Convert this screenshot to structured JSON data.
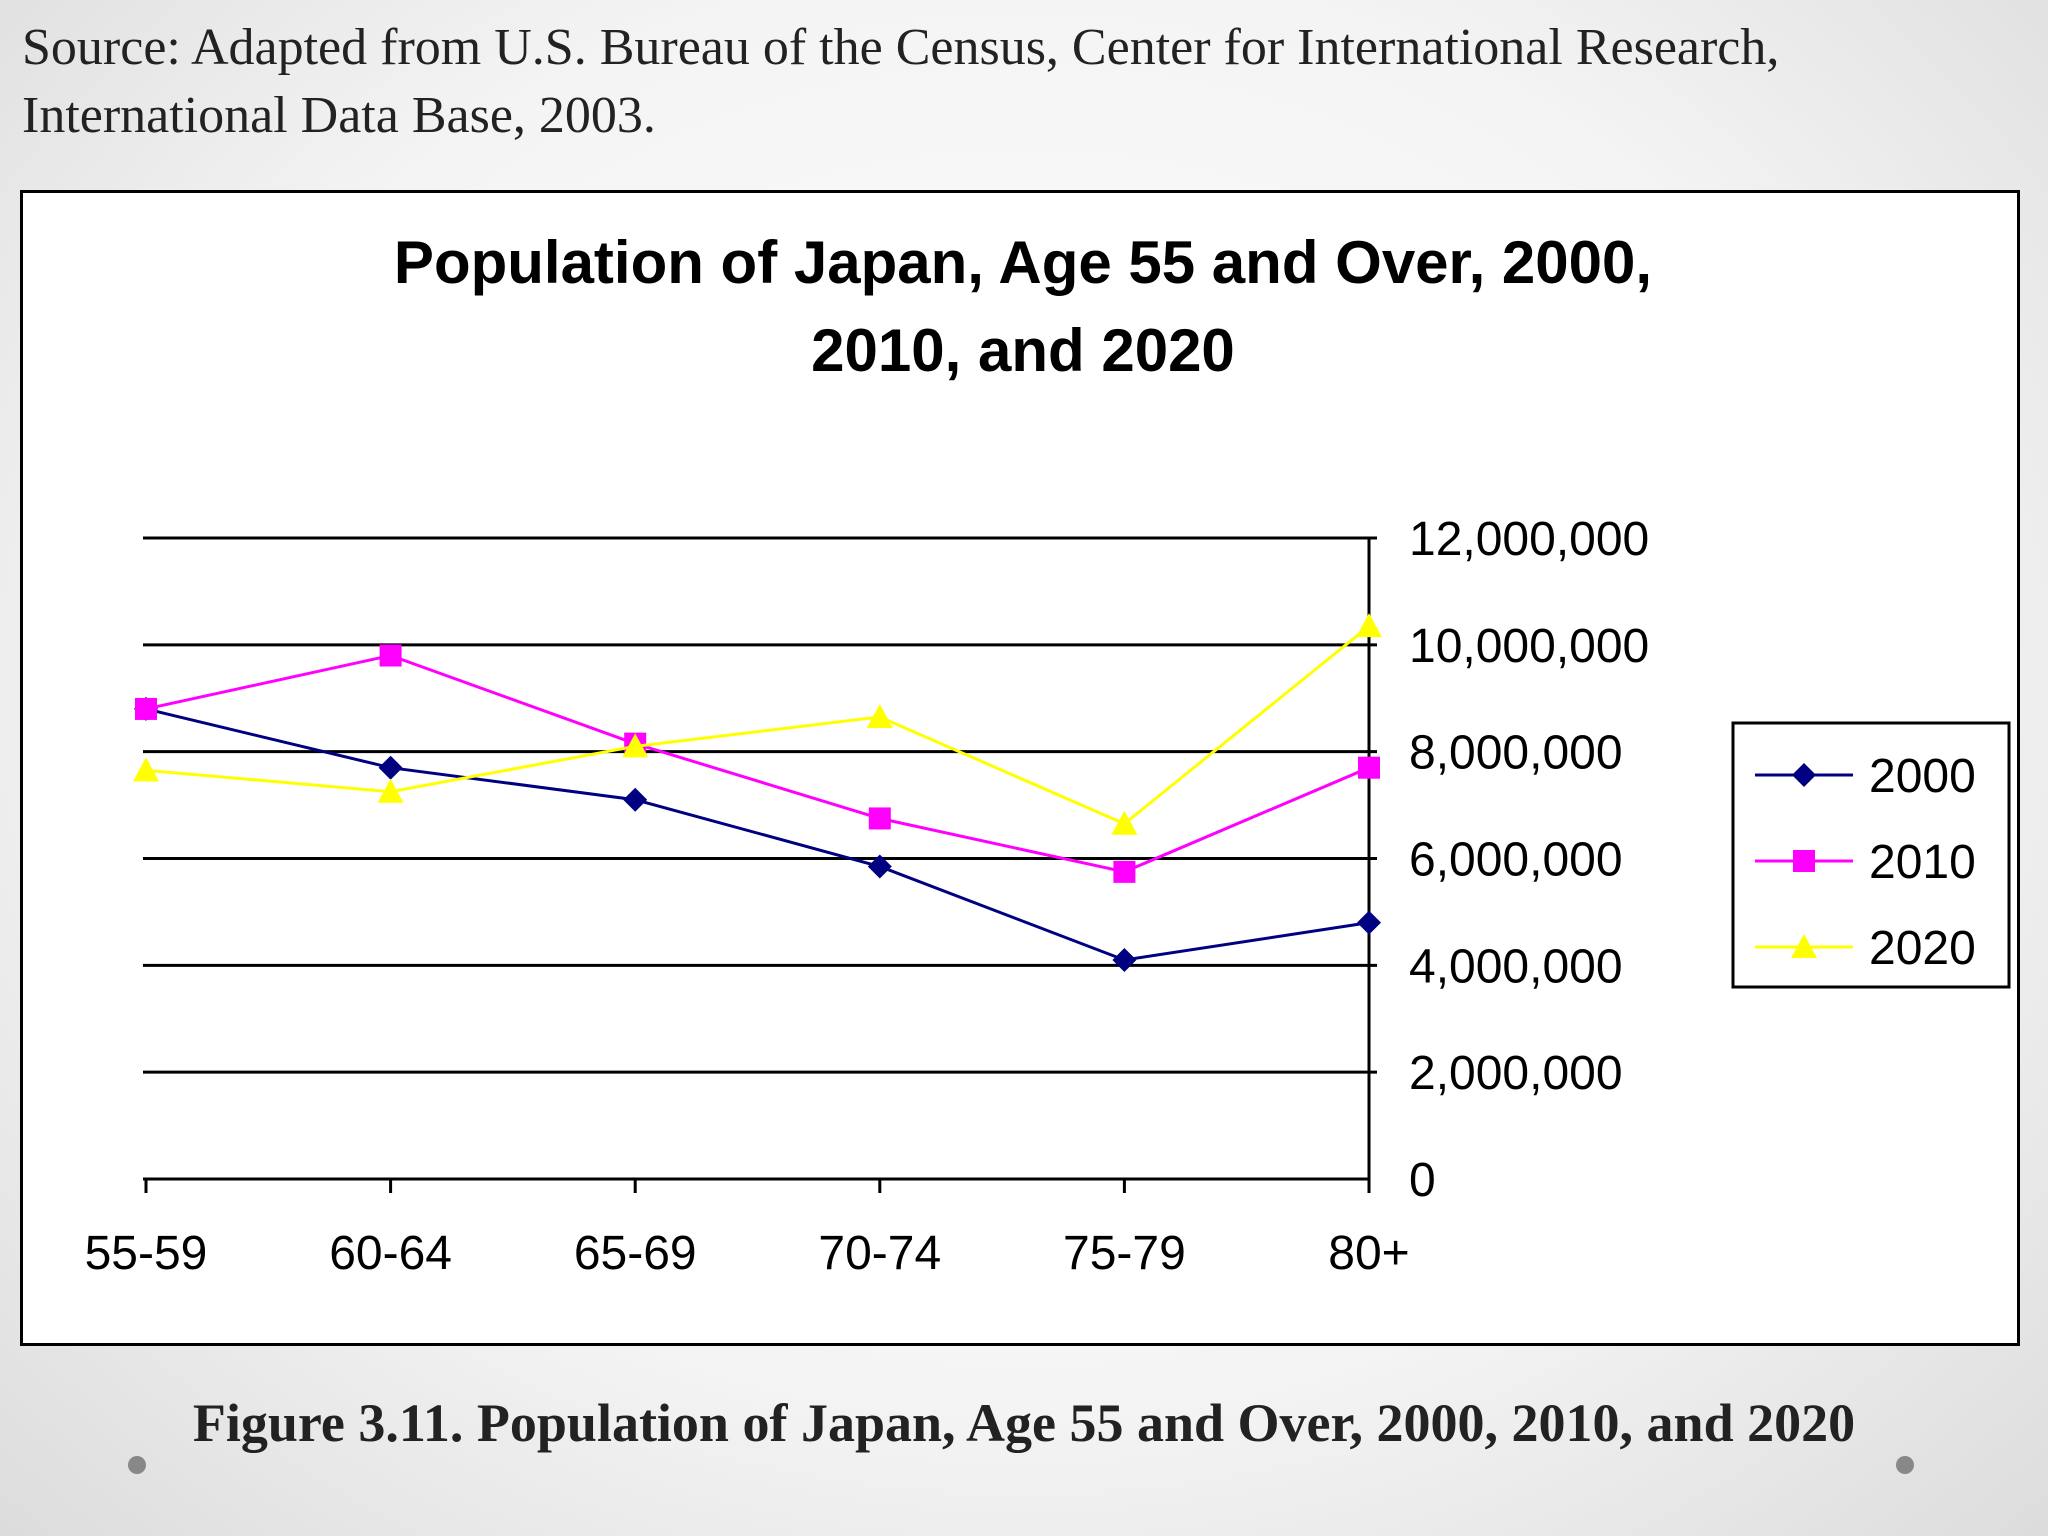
{
  "source_text": "Source: Adapted from U.S. Bureau of the Census, Center for International Research,",
  "source_text_2": "International Data Base, 2003.",
  "caption": "Figure 3.11. Population of Japan, Age 55 and Over, 2000, 2010, and 2020",
  "chart_data": {
    "type": "line",
    "title_lines": [
      "Population of Japan, Age 55 and Over, 2000,",
      "2010, and 2020"
    ],
    "categories": [
      "55-59",
      "60-64",
      "65-69",
      "70-74",
      "75-79",
      "80+"
    ],
    "ylim": [
      0,
      12000000
    ],
    "yticks": [
      0,
      2000000,
      4000000,
      6000000,
      8000000,
      10000000,
      12000000
    ],
    "ytick_labels": [
      "0",
      "2,000,000",
      "4,000,000",
      "6,000,000",
      "8,000,000",
      "10,000,000",
      "12,000,000"
    ],
    "y_axis_side": "right",
    "grid": true,
    "legend_position": "right",
    "series": [
      {
        "name": "2000",
        "marker": "diamond",
        "color": "#000080",
        "values": [
          8800000,
          7700000,
          7100000,
          5850000,
          4100000,
          4800000
        ]
      },
      {
        "name": "2010",
        "marker": "square",
        "color": "#ff00ff",
        "values": [
          8800000,
          9800000,
          8150000,
          6750000,
          5750000,
          7700000
        ]
      },
      {
        "name": "2020",
        "marker": "triangle",
        "color": "#ffff00",
        "values": [
          7650000,
          7250000,
          8100000,
          8650000,
          6650000,
          10350000
        ]
      }
    ]
  }
}
